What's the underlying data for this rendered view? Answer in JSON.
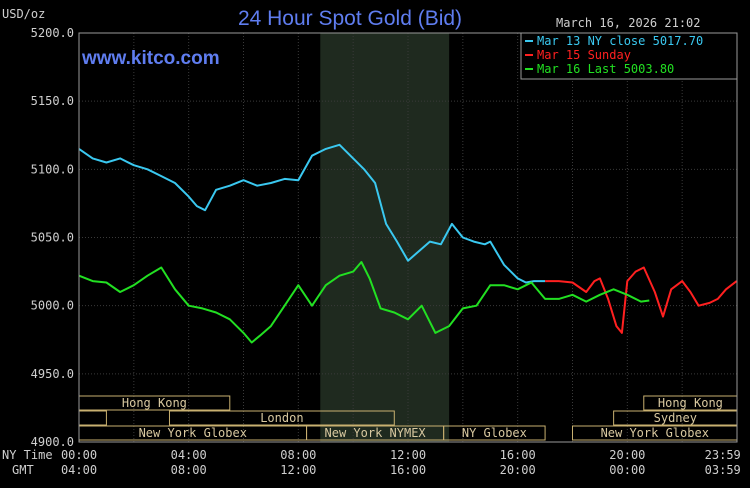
{
  "chart_data": {
    "type": "line",
    "title": "24 Hour Spot Gold (Bid)",
    "ylabel": "USD/oz",
    "website": "www.kitco.com",
    "timestamp": "March 16, 2026 21:02",
    "ylim": [
      4900,
      5200
    ],
    "yticks": [
      "5200.0",
      "5150.0",
      "5100.0",
      "5050.0",
      "5000.0",
      "4950.0",
      "4900.0"
    ],
    "xlim": [
      0,
      24
    ],
    "x_unit": "hours (NY time)",
    "grid": true,
    "legend_position": "top-right",
    "x_rows": {
      "ny_time_label": "NY Time",
      "gmt_label": "GMT",
      "ny_time": [
        "00:00",
        "04:00",
        "08:00",
        "12:00",
        "16:00",
        "20:00",
        "23:59"
      ],
      "gmt": [
        "04:00",
        "08:00",
        "12:00",
        "16:00",
        "20:00",
        "00:00",
        "03:59"
      ]
    },
    "legend": [
      {
        "label": "Mar 13 NY close 5017.70",
        "color": "#3ac8f0"
      },
      {
        "label": "Mar 15 Sunday",
        "color": "#ff2020"
      },
      {
        "label": "Mar 16 Last 5003.80",
        "color": "#22e022"
      }
    ],
    "session_shading": [
      {
        "from": 8.8,
        "to": 13.5
      }
    ],
    "market_rows": [
      [
        {
          "label": "Hong Kong",
          "from": 0,
          "to": 5.5
        },
        {
          "label": "Hong Kong",
          "from": 20.6,
          "to": 24
        }
      ],
      [
        {
          "label": "",
          "from": 0,
          "to": 1.0
        },
        {
          "label": "London",
          "from": 3.3,
          "to": 11.5
        },
        {
          "label": "Sydney",
          "from": 19.5,
          "to": 24
        }
      ],
      [
        {
          "label": "New York Globex",
          "from": 0,
          "to": 8.3
        },
        {
          "label": "New York NYMEX",
          "from": 8.3,
          "to": 13.3
        },
        {
          "label": "NY Globex",
          "from": 13.3,
          "to": 17.0
        },
        {
          "label": "New York Globex",
          "from": 18.0,
          "to": 24
        }
      ]
    ],
    "series": [
      {
        "name": "Mar 13 NY close 5017.70",
        "color": "#3ac8f0",
        "x": [
          0,
          0.5,
          1.0,
          1.5,
          2.0,
          2.5,
          3.0,
          3.5,
          4.0,
          4.3,
          4.6,
          5.0,
          5.5,
          6.0,
          6.5,
          7.0,
          7.5,
          8.0,
          8.5,
          9.0,
          9.5,
          10.0,
          10.4,
          10.8,
          11.2,
          11.6,
          12.0,
          12.4,
          12.8,
          13.2,
          13.6,
          14.0,
          14.4,
          14.8,
          15.0,
          15.5,
          16.0,
          16.3,
          16.6,
          17.0
        ],
        "y": [
          5115,
          5108,
          5105,
          5108,
          5103,
          5100,
          5095,
          5090,
          5080,
          5073,
          5070,
          5085,
          5088,
          5092,
          5088,
          5090,
          5093,
          5092,
          5110,
          5115,
          5118,
          5108,
          5100,
          5090,
          5060,
          5047,
          5033,
          5040,
          5047,
          5045,
          5060,
          5050,
          5047,
          5045,
          5047,
          5030,
          5020,
          5017,
          5018,
          5018
        ]
      },
      {
        "name": "Mar 15 Sunday",
        "color": "#ff2020",
        "x": [
          17.0,
          17.5,
          18.0,
          18.5,
          18.8,
          19.0,
          19.3,
          19.6,
          19.8,
          20.0,
          20.3,
          20.6,
          21.0,
          21.3,
          21.6,
          22.0,
          22.3,
          22.6,
          23.0,
          23.3,
          23.6,
          23.99
        ],
        "y": [
          5018,
          5018,
          5017,
          5010,
          5018,
          5020,
          5005,
          4985,
          4980,
          5018,
          5025,
          5028,
          5010,
          4992,
          5012,
          5018,
          5010,
          5000,
          5002,
          5005,
          5012,
          5018
        ]
      },
      {
        "name": "Mar 16 Last 5003.80",
        "color": "#22e022",
        "x": [
          0,
          0.5,
          1.0,
          1.5,
          2.0,
          2.5,
          3.0,
          3.5,
          4.0,
          4.5,
          5.0,
          5.5,
          6.0,
          6.3,
          6.6,
          7.0,
          7.5,
          8.0,
          8.5,
          9.0,
          9.5,
          10.0,
          10.3,
          10.6,
          11.0,
          11.5,
          12.0,
          12.5,
          13.0,
          13.5,
          14.0,
          14.5,
          15.0,
          15.5,
          16.0,
          16.5,
          17.0,
          17.5,
          18.0,
          18.5,
          19.0,
          19.5,
          20.0,
          20.5,
          20.8
        ],
        "y": [
          5022,
          5018,
          5017,
          5010,
          5015,
          5022,
          5028,
          5012,
          5000,
          4998,
          4995,
          4990,
          4980,
          4973,
          4978,
          4985,
          5000,
          5015,
          5000,
          5015,
          5022,
          5025,
          5032,
          5020,
          4998,
          4995,
          4990,
          5000,
          4980,
          4985,
          4998,
          5000,
          5015,
          5015,
          5012,
          5017,
          5005,
          5005,
          5008,
          5003,
          5008,
          5012,
          5008,
          5003,
          5003.8
        ]
      }
    ]
  }
}
